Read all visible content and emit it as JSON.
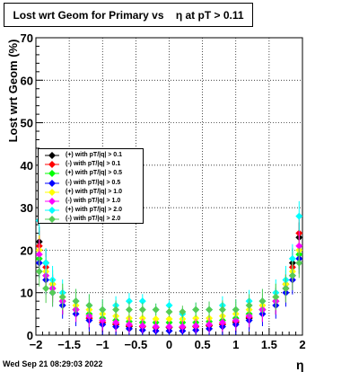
{
  "title": "Lost wrt Geom for Primary vs    η at pT > 0.11",
  "timestamp": "Wed Sep 21 08:29:03 2022",
  "chart_data": {
    "type": "scatter",
    "title": "Lost wrt Geom for Primary vs    η at pT > 0.11",
    "xlabel": "η",
    "ylabel": "Lost wrt Geom (%)",
    "xlim": [
      -2.0,
      2.0
    ],
    "ylim": [
      0,
      70
    ],
    "x_ticks": [
      "−2",
      "−1.5",
      "−1",
      "−0.5",
      "0",
      "0.5",
      "1",
      "1.5",
      "2"
    ],
    "y_ticks": [
      "0",
      "10",
      "20",
      "30",
      "40",
      "50",
      "60",
      "70"
    ],
    "grid": true,
    "legend_position": "left",
    "series": [
      {
        "name": "(+) with pT/|q| > 0.1",
        "color": "#000000",
        "x": [
          -1.95,
          -1.85,
          -1.75,
          -1.6,
          -1.4,
          -1.2,
          -1.0,
          -0.8,
          -0.6,
          -0.4,
          -0.2,
          0.0,
          0.2,
          0.4,
          0.6,
          0.8,
          1.0,
          1.2,
          1.4,
          1.6,
          1.75,
          1.85,
          1.95
        ],
        "y": [
          22,
          17,
          12,
          8,
          6,
          4,
          3,
          2.5,
          2,
          2,
          1.8,
          1.8,
          1.8,
          2,
          2.2,
          2.5,
          3,
          4,
          6,
          8,
          12,
          17,
          23
        ]
      },
      {
        "name": "(-) with pT/|q| > 0.1",
        "color": "#ff0000",
        "x": [
          -1.95,
          -1.85,
          -1.75,
          -1.6,
          -1.4,
          -1.2,
          -1.0,
          -0.8,
          -0.6,
          -0.4,
          -0.2,
          0.0,
          0.2,
          0.4,
          0.6,
          0.8,
          1.0,
          1.2,
          1.4,
          1.6,
          1.75,
          1.85,
          1.95
        ],
        "y": [
          21,
          16,
          11,
          8,
          6,
          4,
          3,
          2.6,
          2.2,
          2,
          1.9,
          1.9,
          1.9,
          2,
          2.3,
          2.6,
          3.2,
          4.2,
          6,
          8,
          11,
          16,
          24
        ]
      },
      {
        "name": "(+) with pT/|q| > 0.5",
        "color": "#00ff00",
        "x": [
          -1.95,
          -1.85,
          -1.75,
          -1.6,
          -1.4,
          -1.2,
          -1.0,
          -0.8,
          -0.6,
          -0.4,
          -0.2,
          0.0,
          0.2,
          0.4,
          0.6,
          0.8,
          1.0,
          1.2,
          1.4,
          1.6,
          1.75,
          1.85,
          1.95
        ],
        "y": [
          18,
          14,
          11,
          8,
          6,
          5,
          4,
          3.5,
          3.2,
          3,
          3,
          3,
          3,
          3,
          3.2,
          3.5,
          4,
          5,
          6,
          8,
          11,
          14,
          19
        ]
      },
      {
        "name": "(-) with pT/|q| > 0.5",
        "color": "#0000ff",
        "x": [
          -1.95,
          -1.85,
          -1.75,
          -1.6,
          -1.4,
          -1.2,
          -1.0,
          -0.8,
          -0.6,
          -0.4,
          -0.2,
          0.0,
          0.2,
          0.4,
          0.6,
          0.8,
          1.0,
          1.2,
          1.4,
          1.6,
          1.75,
          1.85,
          1.95
        ],
        "y": [
          17,
          13,
          10,
          7,
          5,
          3.5,
          2.5,
          2,
          1.5,
          1.2,
          1,
          1,
          1,
          1.2,
          1.5,
          2,
          2.5,
          3.5,
          5,
          7,
          10,
          13,
          18
        ]
      },
      {
        "name": "(+) with pT/|q| > 1.0",
        "color": "#ffff00",
        "x": [
          -1.95,
          -1.85,
          -1.75,
          -1.6,
          -1.4,
          -1.2,
          -1.0,
          -0.8,
          -0.6,
          -0.4,
          -0.2,
          0.0,
          0.2,
          0.4,
          0.6,
          0.8,
          1.0,
          1.2,
          1.4,
          1.6,
          1.75,
          1.85,
          1.95
        ],
        "y": [
          20,
          15,
          12,
          9,
          7,
          6,
          5,
          4.5,
          4,
          4,
          3.8,
          3.8,
          3.8,
          4,
          4,
          4.5,
          5,
          6,
          7,
          9,
          12,
          15,
          20
        ]
      },
      {
        "name": "(-) with pT/|q| > 1.0",
        "color": "#ff00ff",
        "x": [
          -1.95,
          -1.85,
          -1.75,
          -1.6,
          -1.4,
          -1.2,
          -1.0,
          -0.8,
          -0.6,
          -0.4,
          -0.2,
          0.0,
          0.2,
          0.4,
          0.6,
          0.8,
          1.0,
          1.2,
          1.4,
          1.6,
          1.75,
          1.85,
          1.95
        ],
        "y": [
          19,
          14,
          11,
          8,
          6,
          4.5,
          3.5,
          3,
          2.5,
          2.2,
          2,
          2,
          2,
          2.2,
          2.5,
          3,
          3.5,
          4.5,
          6,
          8,
          11,
          14,
          21
        ]
      },
      {
        "name": "(+) with pT/|q| > 2.0",
        "color": "#00ffff",
        "x": [
          -1.95,
          -1.85,
          -1.75,
          -1.6,
          -1.4,
          -1.2,
          -1.0,
          -0.8,
          -0.6,
          -0.4,
          -0.2,
          0.0,
          0.2,
          0.4,
          0.6,
          0.8,
          1.0,
          1.2,
          1.4,
          1.6,
          1.75,
          1.85,
          1.95
        ],
        "y": [
          27,
          17,
          13,
          10,
          8,
          7,
          6,
          7,
          8,
          8,
          6,
          7,
          5,
          6,
          6,
          7,
          6,
          8,
          8,
          10,
          13,
          18,
          28
        ]
      },
      {
        "name": "(-) with pT/|q| > 2.0",
        "color": "#55cc55",
        "x": [
          -1.95,
          -1.85,
          -1.75,
          -1.6,
          -1.4,
          -1.2,
          -1.0,
          -0.8,
          -0.6,
          -0.4,
          -0.2,
          0.0,
          0.2,
          0.4,
          0.6,
          0.8,
          1.0,
          1.2,
          1.4,
          1.6,
          1.75,
          1.85,
          1.95
        ],
        "y": [
          15,
          11,
          10,
          9,
          8,
          7,
          6,
          6,
          6,
          6,
          6,
          5.5,
          5.5,
          6,
          6,
          6,
          6,
          7,
          8,
          9,
          11,
          14,
          17
        ]
      }
    ]
  }
}
